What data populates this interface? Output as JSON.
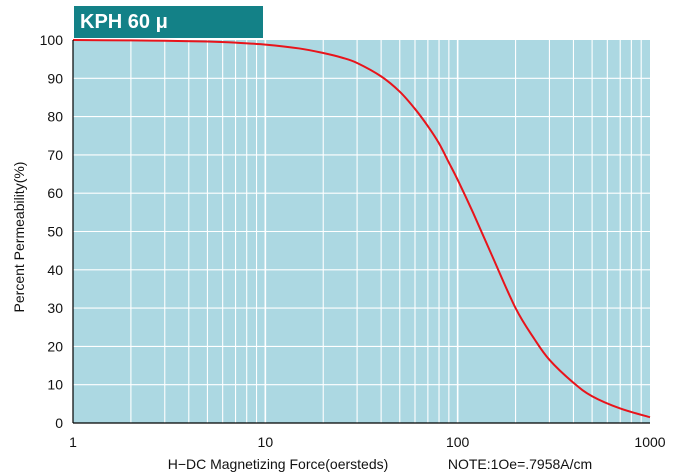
{
  "colors": {
    "banner": "#138187",
    "plot_background": "#acd8e2",
    "grid": "#ffffff",
    "curve": "#e8141b",
    "axis": "#000000",
    "text": "#111111"
  },
  "chart_data": {
    "type": "line",
    "title": "KPH 60 μ",
    "xlabel": "H−DC Magnetizing Force(oersteds)",
    "note": "NOTE:1Oe=.7958A/cm",
    "ylabel": "Percent Permeability(%)",
    "x_scale": "log",
    "xlim": [
      1,
      1000
    ],
    "ylim": [
      0,
      100
    ],
    "x_ticks": [
      1,
      10,
      100,
      1000
    ],
    "x_tick_labels": [
      "1",
      "10",
      "100",
      "1000"
    ],
    "y_ticks": [
      0,
      10,
      20,
      30,
      40,
      50,
      60,
      70,
      80,
      90,
      100
    ],
    "y_tick_labels": [
      "0",
      "10",
      "20",
      "30",
      "40",
      "50",
      "60",
      "70",
      "80",
      "90",
      "100"
    ],
    "grid": true,
    "series": [
      {
        "x": [
          1,
          2,
          3,
          5,
          7,
          10,
          15,
          20,
          25,
          30,
          40,
          50,
          60,
          70,
          80,
          90,
          100,
          120,
          150,
          200,
          250,
          300,
          400,
          500,
          700,
          1000
        ],
        "y": [
          100,
          99.9,
          99.8,
          99.6,
          99.3,
          98.8,
          97.8,
          96.6,
          95.4,
          94.0,
          90.5,
          86.5,
          82.0,
          77.5,
          73.0,
          68.0,
          63.5,
          55.0,
          44.0,
          30.0,
          22.0,
          16.5,
          10.5,
          7.0,
          3.8,
          1.5
        ]
      }
    ]
  }
}
